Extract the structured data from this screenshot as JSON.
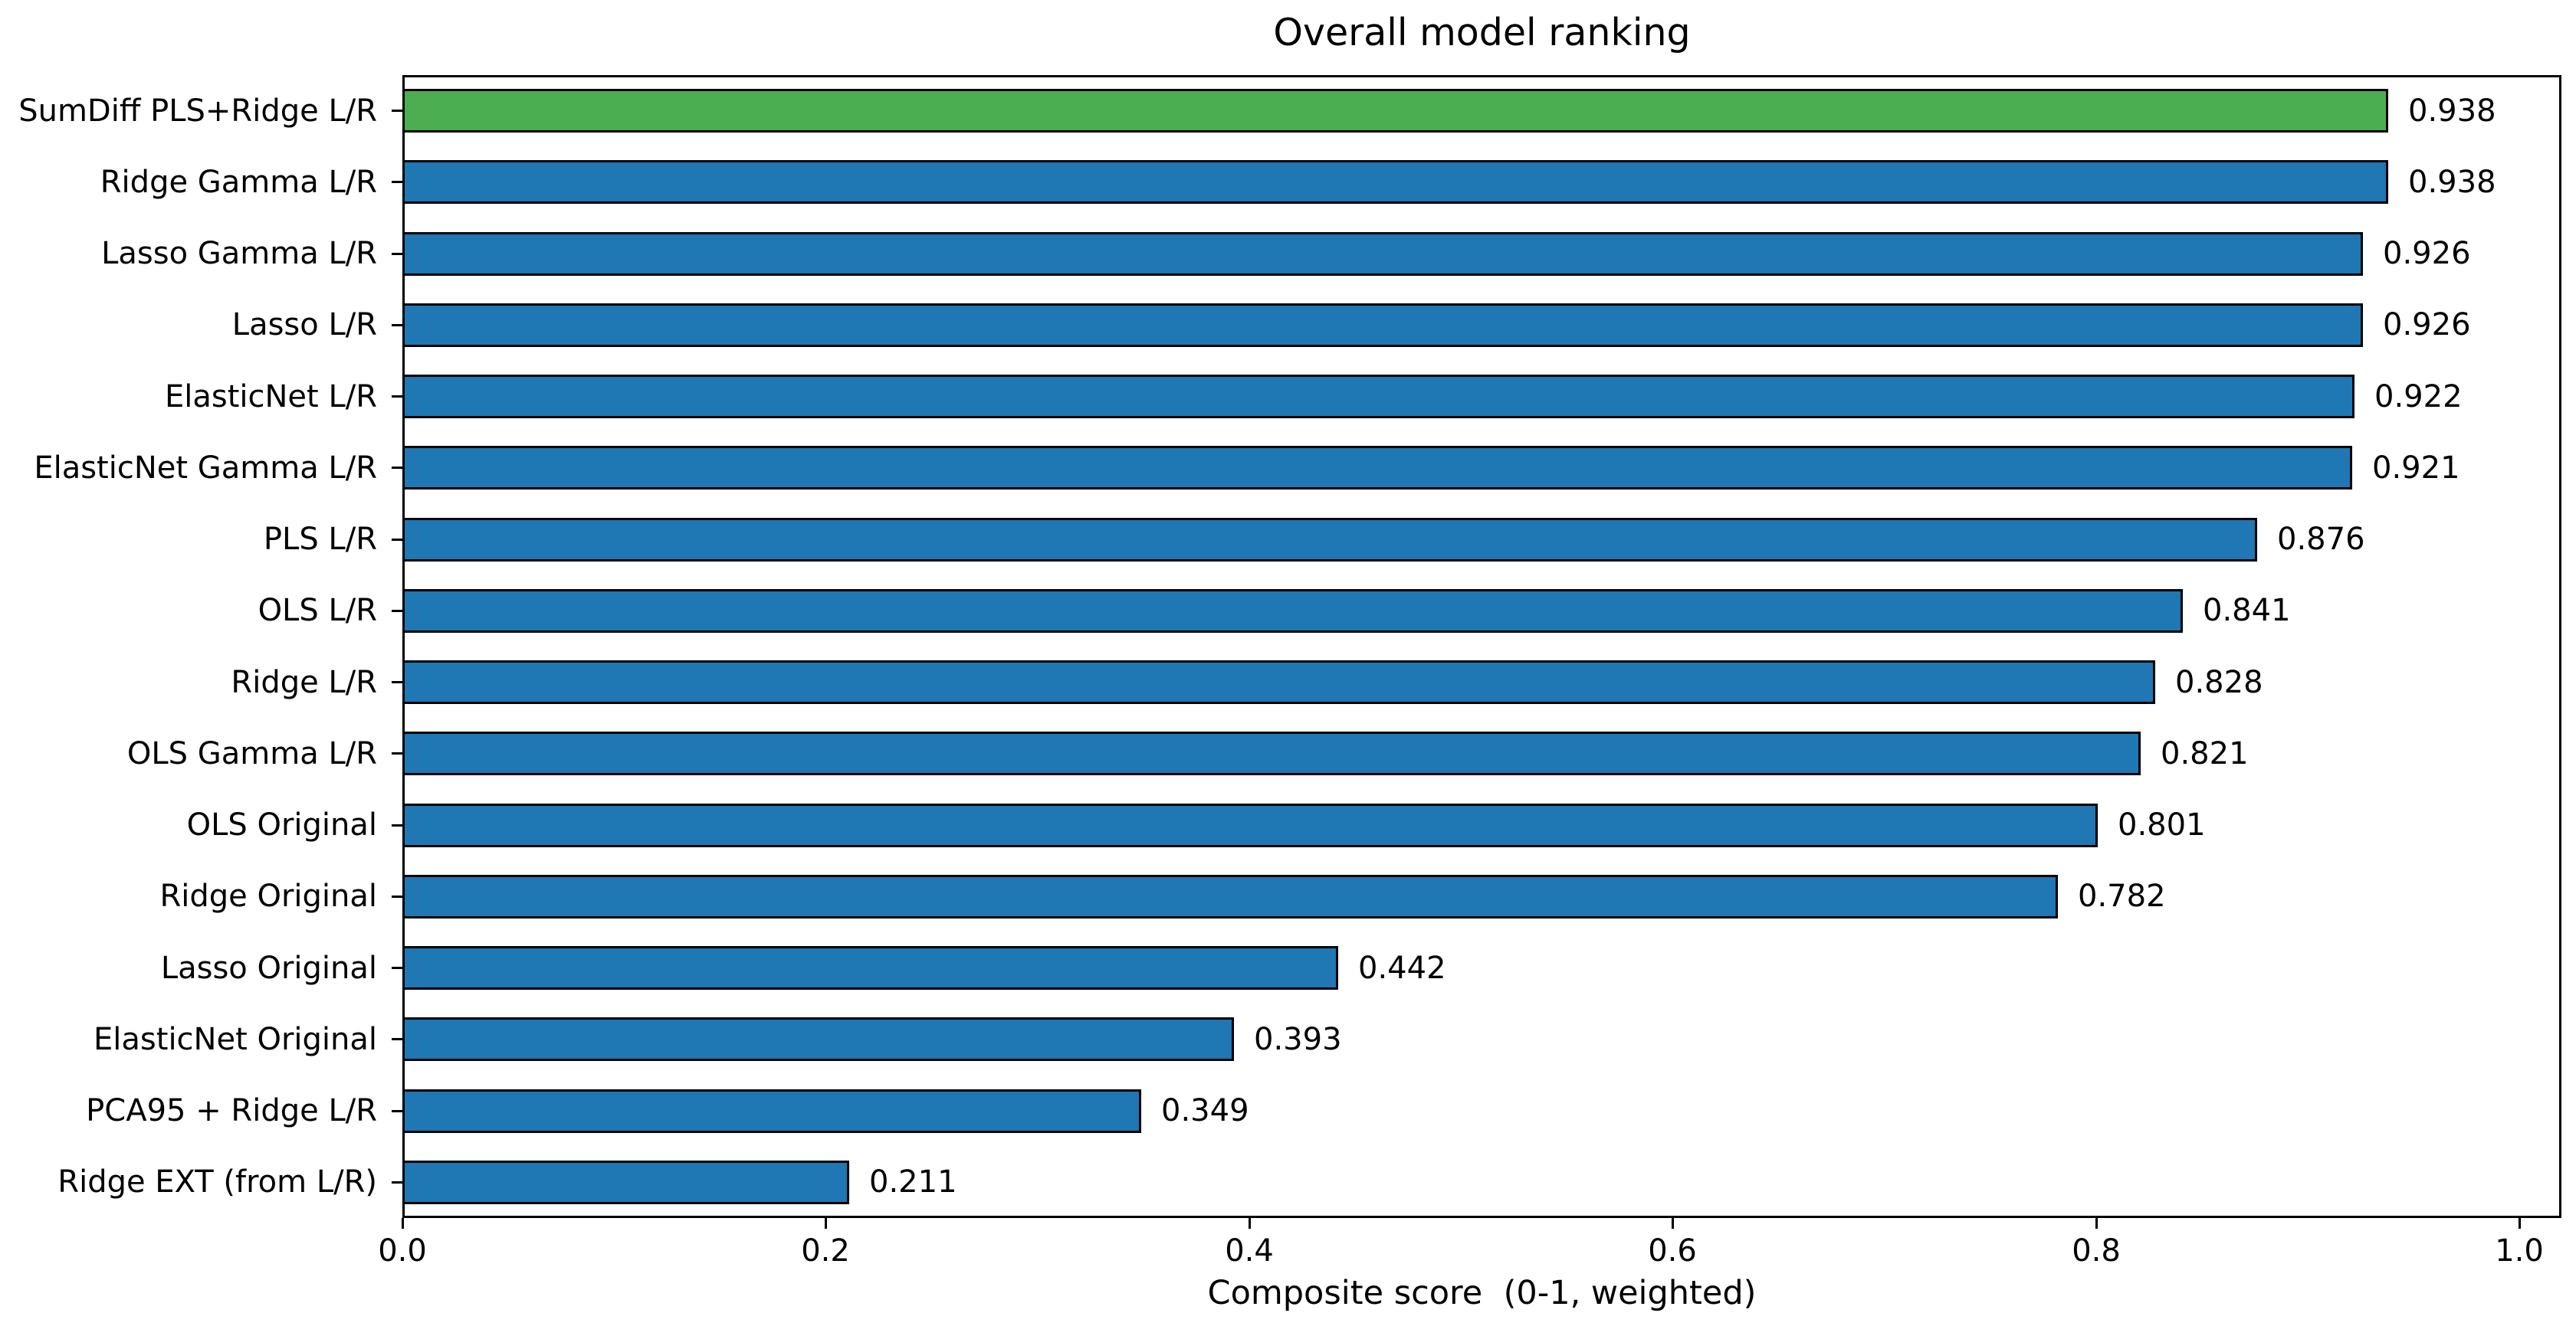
{
  "chart_data": {
    "type": "bar",
    "orientation": "horizontal",
    "title": "Overall model ranking",
    "xlabel": "Composite score  (0-1, weighted)",
    "xlim": [
      0,
      1.02
    ],
    "grid": false,
    "legend": null,
    "xticks": [
      0.0,
      0.2,
      0.4,
      0.6,
      0.8,
      1.0
    ],
    "xtick_labels": [
      "0.0",
      "0.2",
      "0.4",
      "0.6",
      "0.8",
      "1.0"
    ],
    "categories": [
      "SumDiff PLS+Ridge L/R",
      "Ridge Gamma L/R",
      "Lasso Gamma L/R",
      "Lasso L/R",
      "ElasticNet L/R",
      "ElasticNet Gamma L/R",
      "PLS L/R",
      "OLS L/R",
      "Ridge L/R",
      "OLS Gamma L/R",
      "OLS Original",
      "Ridge Original",
      "Lasso Original",
      "ElasticNet Original",
      "PCA95 + Ridge L/R",
      "Ridge EXT (from L/R)"
    ],
    "values": [
      0.938,
      0.938,
      0.926,
      0.926,
      0.922,
      0.921,
      0.876,
      0.841,
      0.828,
      0.821,
      0.801,
      0.782,
      0.442,
      0.393,
      0.349,
      0.211
    ],
    "value_labels": [
      "0.938",
      "0.938",
      "0.926",
      "0.926",
      "0.922",
      "0.921",
      "0.876",
      "0.841",
      "0.828",
      "0.821",
      "0.801",
      "0.782",
      "0.442",
      "0.393",
      "0.349",
      "0.211"
    ],
    "highlight_index": 0,
    "colors": {
      "highlight": "#4cae50",
      "default": "#1f77b4",
      "edge": "#000000",
      "text": "#000000",
      "spine": "#000000"
    }
  }
}
